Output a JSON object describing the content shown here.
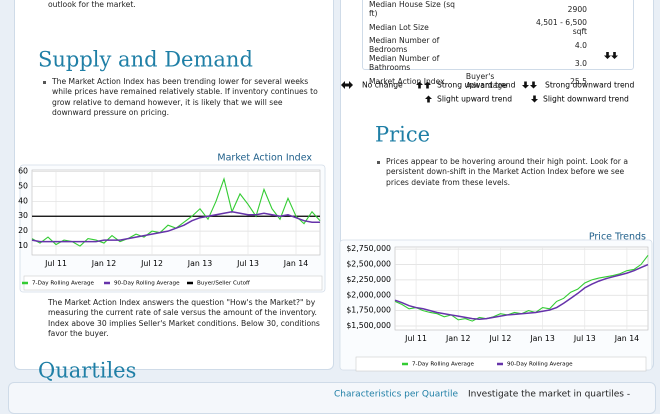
{
  "intro_tail": "outlook for the market.",
  "stats": {
    "rows": [
      [
        "Median House Size (sq ft)",
        "2900"
      ],
      [
        "Median Lot Size",
        "4,501 - 6,500 sqft"
      ],
      [
        "Median Number of Bedrooms",
        "4.0"
      ],
      [
        "Median Number of Bathrooms",
        "3.0"
      ],
      [
        "Market Action Index",
        "Buyer's Advantage",
        "25.5"
      ]
    ]
  },
  "trend_legend": [
    "No change",
    "Strong upward trend",
    "Strong downward trend",
    "Slight upward trend",
    "Slight downward trend"
  ],
  "supply": {
    "heading": "Supply and Demand",
    "text": "The Market Action Index has been trending lower for several weeks while prices have remained relatively stable. If inventory continues to grow relative to demand however, it is likely that we will see downward pressure on pricing."
  },
  "mai_note": "The Market Action Index answers the question \"How's the Market?\" by measuring the current rate of sale versus the amount of the inventory.  Index above 30 implies Seller's Market conditions. Below 30, conditions favor the buyer.",
  "price": {
    "heading": "Price",
    "text": "Prices appear to be hovering around their high point. Look for a persistent down-shift in the Market Action Index before we see prices deviate from these levels."
  },
  "quartiles": {
    "heading": "Quartiles",
    "tab": "Characteristics per Quartile",
    "text": "Investigate the market in quartiles -"
  },
  "chart_data": [
    {
      "type": "line",
      "title": "Market Action Index",
      "xlim": [
        0,
        36
      ],
      "xticks": [
        {
          "value": 3,
          "label": "Jul 11"
        },
        {
          "value": 9,
          "label": "Jan 12"
        },
        {
          "value": 15,
          "label": "Jul 12"
        },
        {
          "value": 21,
          "label": "Jan 13"
        },
        {
          "value": 27,
          "label": "Jul 13"
        },
        {
          "value": 33,
          "label": "Jan 14"
        }
      ],
      "ylim": [
        4,
        61
      ],
      "yticks": [
        10,
        20,
        30,
        40,
        50,
        60
      ],
      "grid": true,
      "series": [
        {
          "name": "7-Day Rolling Average",
          "color": "#33cc33",
          "values": [
            15,
            12,
            16,
            11,
            14,
            13,
            10,
            15,
            14,
            12,
            17,
            13,
            15,
            18,
            16,
            20,
            19,
            24,
            22,
            26,
            30,
            35,
            28,
            40,
            55,
            33,
            45,
            38,
            30,
            48,
            35,
            28,
            42,
            30,
            25,
            33,
            27
          ]
        },
        {
          "name": "90-Day Rolling Average",
          "color": "#6633aa",
          "values": [
            14,
            13,
            13,
            13,
            13,
            13,
            13,
            13,
            13,
            14,
            14,
            14,
            15,
            16,
            17,
            18,
            19,
            20,
            22,
            24,
            27,
            29,
            30,
            31,
            32,
            33,
            32,
            31,
            31,
            32,
            31,
            30,
            31,
            29,
            27,
            26,
            26
          ]
        }
      ],
      "reference_line": {
        "name": "Buyer/Seller Cutoff",
        "color": "#000000",
        "value": 30
      }
    },
    {
      "type": "line",
      "title": "Price Trends",
      "xlim": [
        0,
        36
      ],
      "xticks": [
        {
          "value": 3,
          "label": "Jul 11"
        },
        {
          "value": 9,
          "label": "Jan 12"
        },
        {
          "value": 15,
          "label": "Jul 12"
        },
        {
          "value": 21,
          "label": "Jan 13"
        },
        {
          "value": 27,
          "label": "Jul 13"
        },
        {
          "value": 33,
          "label": "Jan 14"
        }
      ],
      "ylim": [
        1435000,
        2785000
      ],
      "yticks": [
        {
          "value": 1500000,
          "label": "$1,500,000"
        },
        {
          "value": 1750000,
          "label": "$1,750,000"
        },
        {
          "value": 2000000,
          "label": "$2,000,000"
        },
        {
          "value": 2250000,
          "label": "$2,250,000"
        },
        {
          "value": 2500000,
          "label": "$2,500,000"
        },
        {
          "value": 2750000,
          "label": "$2,750,000"
        }
      ],
      "grid": true,
      "series": [
        {
          "name": "7-Day Rolling Average",
          "color": "#33cc33",
          "values": [
            1900000,
            1850000,
            1780000,
            1800000,
            1750000,
            1720000,
            1700000,
            1650000,
            1680000,
            1600000,
            1620000,
            1580000,
            1640000,
            1620000,
            1650000,
            1700000,
            1680000,
            1720000,
            1700000,
            1750000,
            1720000,
            1800000,
            1780000,
            1900000,
            1950000,
            2050000,
            2100000,
            2200000,
            2250000,
            2280000,
            2300000,
            2320000,
            2350000,
            2400000,
            2420000,
            2500000,
            2650000
          ]
        },
        {
          "name": "90-Day Rolling Average",
          "color": "#6633aa",
          "values": [
            1920000,
            1880000,
            1830000,
            1800000,
            1780000,
            1750000,
            1720000,
            1700000,
            1680000,
            1660000,
            1640000,
            1620000,
            1610000,
            1620000,
            1640000,
            1660000,
            1680000,
            1690000,
            1700000,
            1710000,
            1720000,
            1740000,
            1760000,
            1800000,
            1870000,
            1950000,
            2030000,
            2120000,
            2180000,
            2230000,
            2270000,
            2300000,
            2330000,
            2360000,
            2400000,
            2450000,
            2500000
          ]
        }
      ]
    }
  ]
}
